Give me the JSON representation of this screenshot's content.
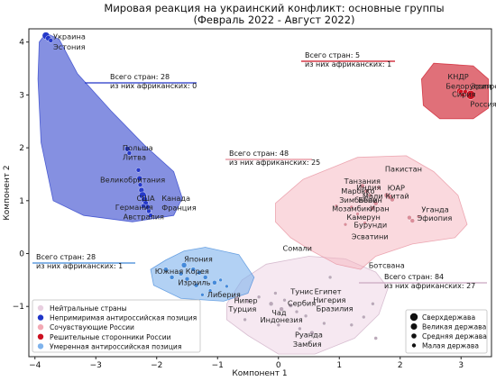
{
  "chart_data": {
    "type": "scatter",
    "title": "Мировая реакция на украинский конфликт: основные группы",
    "subtitle": "(Февраль 2022 - Август 2022)",
    "xlabel": "Компонент 1",
    "ylabel": "Компонент 2",
    "xlim": [
      -4.1,
      3.5
    ],
    "ylim": [
      -1.95,
      4.25
    ],
    "xticks": [
      "−4",
      "−3",
      "−2",
      "−1",
      "0",
      "1",
      "2",
      "3"
    ],
    "yticks": [
      "−1",
      "0",
      "1",
      "2",
      "3",
      "4"
    ],
    "xtick_values": [
      -4,
      -3,
      -2,
      -1,
      0,
      1,
      2,
      3
    ],
    "ytick_values": [
      -1,
      0,
      1,
      2,
      3,
      4
    ],
    "grid": false,
    "legend_position": "lower-left",
    "colors": {
      "neutral": "#efd5e6",
      "strong_anti": "#2035c8",
      "sympathetic": "#f6b3bd",
      "pro_russia": "#cc1020",
      "moderate_anti": "#7fb3ec"
    },
    "groups": [
      {
        "id": "strong_anti",
        "name": "Непримиримая антироссийская позиция",
        "note_total": "Всего стран: 28",
        "note_african": "из них африканских: 0",
        "hull": [
          [
            -3.82,
            4.17
          ],
          [
            -3.6,
            4.05
          ],
          [
            -3.3,
            3.4
          ],
          [
            -2.75,
            2.7
          ],
          [
            -2.2,
            2.05
          ],
          [
            -1.72,
            1.55
          ],
          [
            -1.58,
            1.05
          ],
          [
            -1.72,
            0.72
          ],
          [
            -2.4,
            0.6
          ],
          [
            -3.2,
            0.72
          ],
          [
            -3.7,
            1.0
          ],
          [
            -3.9,
            2.1
          ],
          [
            -3.95,
            3.3
          ],
          [
            -3.93,
            4.0
          ]
        ],
        "labels": [
          {
            "text": "Украина",
            "x": -3.7,
            "y": 4.05
          },
          {
            "text": "Эстония",
            "x": -3.7,
            "y": 3.86
          },
          {
            "text": "Польша",
            "x": -2.56,
            "y": 1.95
          },
          {
            "text": "Литва",
            "x": -2.56,
            "y": 1.77
          },
          {
            "text": "Великобритания",
            "x": -2.93,
            "y": 1.35
          },
          {
            "text": "США",
            "x": -2.33,
            "y": 1.0
          },
          {
            "text": "Германия",
            "x": -2.68,
            "y": 0.83
          },
          {
            "text": "Австралия",
            "x": -2.55,
            "y": 0.65
          },
          {
            "text": "Канада",
            "x": -1.92,
            "y": 1.0
          },
          {
            "text": "Франция",
            "x": -1.92,
            "y": 0.82
          }
        ],
        "points": [
          {
            "x": -3.82,
            "y": 4.12,
            "r": 4
          },
          {
            "x": -3.78,
            "y": 4.07,
            "r": 3
          },
          {
            "x": -3.74,
            "y": 4.03,
            "r": 2.5
          },
          {
            "x": -2.48,
            "y": 1.98,
            "r": 3
          },
          {
            "x": -2.45,
            "y": 1.9,
            "r": 2.5
          },
          {
            "x": -2.3,
            "y": 1.58,
            "r": 2.5
          },
          {
            "x": -2.28,
            "y": 1.42,
            "r": 3
          },
          {
            "x": -2.27,
            "y": 1.3,
            "r": 2.5
          },
          {
            "x": -2.25,
            "y": 1.2,
            "r": 3
          },
          {
            "x": -2.23,
            "y": 1.1,
            "r": 4
          },
          {
            "x": -2.2,
            "y": 1.02,
            "r": 3.5
          },
          {
            "x": -2.18,
            "y": 0.95,
            "r": 3
          },
          {
            "x": -2.15,
            "y": 0.88,
            "r": 3
          },
          {
            "x": -2.13,
            "y": 0.8,
            "r": 2.5
          },
          {
            "x": -2.1,
            "y": 0.72,
            "r": 2.5
          },
          {
            "x": -2.22,
            "y": 0.9,
            "r": 2.5
          }
        ]
      },
      {
        "id": "pro_russia",
        "name": "Решительные сторонники России",
        "note_total": "Всего стран: 5",
        "note_african": "из них африканских: 1",
        "hull": [
          [
            2.55,
            3.6
          ],
          [
            3.2,
            3.55
          ],
          [
            3.45,
            3.3
          ],
          [
            3.45,
            2.75
          ],
          [
            3.2,
            2.55
          ],
          [
            2.65,
            2.55
          ],
          [
            2.38,
            2.8
          ],
          [
            2.35,
            3.3
          ]
        ],
        "labels": [
          {
            "text": "КНДР",
            "x": 2.78,
            "y": 3.3
          },
          {
            "text": "Белоруссия",
            "x": 2.75,
            "y": 3.12
          },
          {
            "text": "Сирия",
            "x": 2.85,
            "y": 2.96
          },
          {
            "text": "Эритрея",
            "x": 3.16,
            "y": 3.12
          },
          {
            "text": "Россия",
            "x": 3.15,
            "y": 2.78
          }
        ],
        "points": [
          {
            "x": 2.98,
            "y": 3.07,
            "r": 3.5
          },
          {
            "x": 3.0,
            "y": 3.05,
            "r": 3
          },
          {
            "x": 3.03,
            "y": 3.0,
            "r": 2.5
          },
          {
            "x": 3.07,
            "y": 3.06,
            "r": 2.5
          },
          {
            "x": 3.16,
            "y": 3.0,
            "r": 5
          }
        ]
      },
      {
        "id": "sympathetic",
        "name": "Сочувствующие России",
        "note_total": "Всего стран: 48",
        "note_african": "из них африканских: 25",
        "hull": [
          [
            0.4,
            1.4
          ],
          [
            1.3,
            1.82
          ],
          [
            2.1,
            1.85
          ],
          [
            2.55,
            1.55
          ],
          [
            2.95,
            1.1
          ],
          [
            3.1,
            0.55
          ],
          [
            2.9,
            0.3
          ],
          [
            2.2,
            0.18
          ],
          [
            1.6,
            -0.05
          ],
          [
            1.35,
            -0.3
          ],
          [
            0.95,
            -0.2
          ],
          [
            0.55,
            0.05
          ],
          [
            0.2,
            0.3
          ],
          [
            -0.05,
            0.6
          ],
          [
            -0.05,
            0.95
          ],
          [
            0.2,
            1.2
          ]
        ],
        "labels": [
          {
            "text": "Пакистан",
            "x": 1.75,
            "y": 1.55
          },
          {
            "text": "Танзания",
            "x": 1.08,
            "y": 1.32
          },
          {
            "text": "Индия",
            "x": 1.28,
            "y": 1.2
          },
          {
            "text": "ЮАР",
            "x": 1.79,
            "y": 1.19
          },
          {
            "text": "Марокко",
            "x": 1.03,
            "y": 1.13
          },
          {
            "text": "Мали",
            "x": 1.38,
            "y": 1.04
          },
          {
            "text": "Китай",
            "x": 1.76,
            "y": 1.04
          },
          {
            "text": "Зимбабве",
            "x": 1.0,
            "y": 0.96
          },
          {
            "text": "Бенин",
            "x": 1.31,
            "y": 0.96
          },
          {
            "text": "Мозамбик",
            "x": 0.88,
            "y": 0.8
          },
          {
            "text": "Иран",
            "x": 1.5,
            "y": 0.8
          },
          {
            "text": "Камерун",
            "x": 1.12,
            "y": 0.64
          },
          {
            "text": "Бурунди",
            "x": 1.24,
            "y": 0.49
          },
          {
            "text": "Уганда",
            "x": 2.35,
            "y": 0.78
          },
          {
            "text": "Эфиопия",
            "x": 2.28,
            "y": 0.62
          },
          {
            "text": "Эсватини",
            "x": 1.2,
            "y": 0.27
          },
          {
            "text": "Сомали",
            "x": 0.07,
            "y": 0.05
          },
          {
            "text": "Ботсвана",
            "x": 1.48,
            "y": -0.27
          }
        ],
        "points": [
          {
            "x": 1.38,
            "y": 1.28,
            "r": 2.5
          },
          {
            "x": 1.45,
            "y": 1.18,
            "r": 2.5
          },
          {
            "x": 1.5,
            "y": 1.1,
            "r": 2
          },
          {
            "x": 1.78,
            "y": 1.1,
            "r": 3
          },
          {
            "x": 1.83,
            "y": 1.07,
            "r": 3
          },
          {
            "x": 1.87,
            "y": 1.02,
            "r": 2.5
          },
          {
            "x": 1.6,
            "y": 0.95,
            "r": 2.5
          },
          {
            "x": 1.55,
            "y": 0.86,
            "r": 2.5
          },
          {
            "x": 1.2,
            "y": 0.88,
            "r": 2
          },
          {
            "x": 1.3,
            "y": 0.75,
            "r": 2
          },
          {
            "x": 2.15,
            "y": 0.68,
            "r": 2.5
          },
          {
            "x": 2.2,
            "y": 0.62,
            "r": 2.5
          },
          {
            "x": 2.3,
            "y": 0.7,
            "r": 2
          },
          {
            "x": 1.42,
            "y": 0.58,
            "r": 2
          },
          {
            "x": 1.1,
            "y": 0.55,
            "r": 2
          },
          {
            "x": 0.95,
            "y": 0.9,
            "r": 2
          },
          {
            "x": 1.65,
            "y": 1.25,
            "r": 2
          }
        ]
      },
      {
        "id": "moderate_anti",
        "name": "Умеренная антироссийская позиция",
        "note_total": "Всего стран: 28",
        "note_african": "из них африканских: 1",
        "hull": [
          [
            -1.85,
            -0.12
          ],
          [
            -1.55,
            0.05
          ],
          [
            -1.2,
            0.12
          ],
          [
            -0.65,
            -0.02
          ],
          [
            -0.4,
            -0.45
          ],
          [
            -0.5,
            -0.75
          ],
          [
            -0.9,
            -0.9
          ],
          [
            -1.6,
            -0.85
          ],
          [
            -2.05,
            -0.6
          ],
          [
            -2.1,
            -0.3
          ]
        ],
        "labels": [
          {
            "text": "Япония",
            "x": -1.55,
            "y": -0.15
          },
          {
            "text": "Южная Корея",
            "x": -2.03,
            "y": -0.38
          },
          {
            "text": "Израиль",
            "x": -1.65,
            "y": -0.6
          },
          {
            "text": "Либерия",
            "x": -1.17,
            "y": -0.83
          }
        ],
        "points": [
          {
            "x": -1.55,
            "y": -0.22,
            "r": 3
          },
          {
            "x": -1.4,
            "y": -0.3,
            "r": 2.5
          },
          {
            "x": -1.3,
            "y": -0.36,
            "r": 2.5
          },
          {
            "x": -1.6,
            "y": -0.38,
            "r": 2.5
          },
          {
            "x": -1.75,
            "y": -0.45,
            "r": 2.5
          },
          {
            "x": -1.5,
            "y": -0.48,
            "r": 2.5
          },
          {
            "x": -1.2,
            "y": -0.45,
            "r": 2.5
          },
          {
            "x": -1.05,
            "y": -0.55,
            "r": 2.5
          },
          {
            "x": -0.95,
            "y": -0.5,
            "r": 2
          },
          {
            "x": -1.35,
            "y": -0.6,
            "r": 2.5
          },
          {
            "x": -1.12,
            "y": -0.7,
            "r": 2
          },
          {
            "x": -0.85,
            "y": -0.62,
            "r": 2
          },
          {
            "x": -1.85,
            "y": -0.3,
            "r": 2.5
          },
          {
            "x": -1.25,
            "y": -0.78,
            "r": 2
          }
        ]
      },
      {
        "id": "neutral",
        "name": "Нейтральные страны",
        "note_total": "Всего стран: 84",
        "note_african": "из них африканских: 27",
        "hull": [
          [
            -0.85,
            -0.95
          ],
          [
            -0.6,
            -0.5
          ],
          [
            -0.2,
            -0.2
          ],
          [
            0.5,
            -0.05
          ],
          [
            1.1,
            -0.1
          ],
          [
            1.6,
            -0.35
          ],
          [
            1.8,
            -0.65
          ],
          [
            1.65,
            -1.15
          ],
          [
            1.25,
            -1.6
          ],
          [
            0.6,
            -1.9
          ],
          [
            0.0,
            -1.9
          ],
          [
            -0.5,
            -1.55
          ],
          [
            -0.85,
            -1.25
          ]
        ],
        "labels": [
          {
            "text": "Тунис",
            "x": 0.2,
            "y": -0.77
          },
          {
            "text": "Египет",
            "x": 0.59,
            "y": -0.77
          },
          {
            "text": "Нигерия",
            "x": 0.57,
            "y": -0.93
          },
          {
            "text": "Нигер",
            "x": -0.73,
            "y": -0.94
          },
          {
            "text": "Сербия",
            "x": 0.15,
            "y": -0.99
          },
          {
            "text": "Бразилия",
            "x": 0.62,
            "y": -1.09
          },
          {
            "text": "Турция",
            "x": -0.82,
            "y": -1.1
          },
          {
            "text": "Чад",
            "x": -0.11,
            "y": -1.17
          },
          {
            "text": "Индонезия",
            "x": -0.3,
            "y": -1.3
          },
          {
            "text": "Руанда",
            "x": 0.27,
            "y": -1.58
          },
          {
            "text": "Замбия",
            "x": 0.24,
            "y": -1.76
          }
        ],
        "points": [
          {
            "x": -0.68,
            "y": -0.85,
            "r": 2.5
          },
          {
            "x": -0.5,
            "y": -0.9,
            "r": 2.5
          },
          {
            "x": -0.32,
            "y": -0.82,
            "r": 2
          },
          {
            "x": -0.12,
            "y": -0.95,
            "r": 2.5
          },
          {
            "x": -0.05,
            "y": -0.75,
            "r": 2
          },
          {
            "x": 0.05,
            "y": -1.05,
            "r": 2.5
          },
          {
            "x": 0.1,
            "y": -0.88,
            "r": 2
          },
          {
            "x": 0.2,
            "y": -0.98,
            "r": 2.5
          },
          {
            "x": 0.3,
            "y": -1.1,
            "r": 2
          },
          {
            "x": 0.45,
            "y": -1.18,
            "r": 2
          },
          {
            "x": 0.55,
            "y": -1.5,
            "r": 2.5
          },
          {
            "x": 0.35,
            "y": -1.42,
            "r": 2
          },
          {
            "x": 0.75,
            "y": -1.32,
            "r": 2
          },
          {
            "x": 1.2,
            "y": -1.35,
            "r": 2
          },
          {
            "x": 1.4,
            "y": -1.2,
            "r": 2
          },
          {
            "x": 1.55,
            "y": -0.95,
            "r": 2
          },
          {
            "x": 1.6,
            "y": -1.6,
            "r": 2
          },
          {
            "x": -0.55,
            "y": -1.25,
            "r": 2
          },
          {
            "x": 0.85,
            "y": -0.45,
            "r": 2
          },
          {
            "x": 0.0,
            "y": -1.35,
            "r": 2
          }
        ]
      }
    ],
    "legend_groups": [
      "neutral",
      "strong_anti",
      "sympathetic",
      "pro_russia",
      "moderate_anti"
    ],
    "size_legend": [
      {
        "label": "Сверхдержава",
        "r": 4.2
      },
      {
        "label": "Великая держава",
        "r": 3.5
      },
      {
        "label": "Средняя держава",
        "r": 2.8
      },
      {
        "label": "Малая держава",
        "r": 2.2
      }
    ]
  }
}
